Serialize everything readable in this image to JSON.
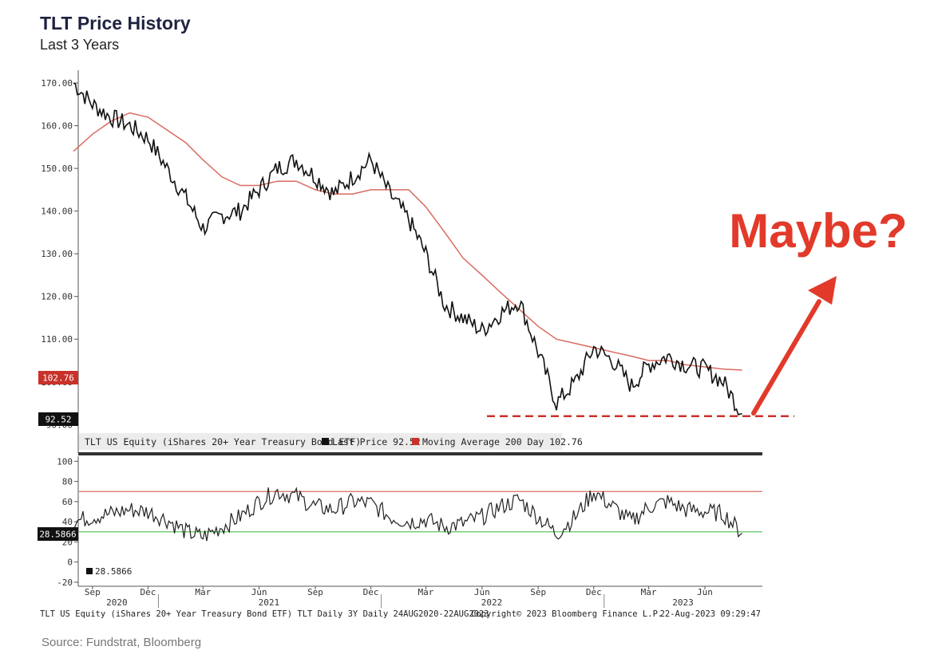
{
  "title": "TLT Price History",
  "subtitle": "Last 3 Years",
  "source": "Source: Fundstrat, Bloomberg",
  "annotation": {
    "text": "Maybe?",
    "color": "#e23a2a"
  },
  "colors": {
    "price": "#111111",
    "ma": "#d96b60",
    "rsi": "#222222",
    "rsi_upper": "#d96b60",
    "rsi_lower": "#5bc45b",
    "marker_dash": "#c8322a"
  },
  "chart_data": [
    {
      "type": "line",
      "panel": "price",
      "ylim": [
        88,
        173
      ],
      "yticks": [
        "170.00",
        "160.00",
        "150.00",
        "140.00",
        "130.00",
        "120.00",
        "110.00",
        "100.00",
        "90.00"
      ],
      "ytick_values": [
        170,
        160,
        150,
        140,
        130,
        120,
        110,
        100,
        90
      ],
      "x_domain": [
        "2020-08-24",
        "2023-08-22"
      ],
      "x": [
        "2020-08",
        "2020-09",
        "2020-10",
        "2020-11",
        "2020-12",
        "2021-01",
        "2021-02",
        "2021-03",
        "2021-04",
        "2021-05",
        "2021-06",
        "2021-07",
        "2021-08",
        "2021-09",
        "2021-10",
        "2021-11",
        "2021-12",
        "2022-01",
        "2022-02",
        "2022-03",
        "2022-04",
        "2022-05",
        "2022-06",
        "2022-07",
        "2022-08",
        "2022-09",
        "2022-10",
        "2022-11",
        "2022-12",
        "2023-01",
        "2023-02",
        "2023-03",
        "2023-04",
        "2023-05",
        "2023-06",
        "2023-07",
        "2023-08"
      ],
      "series": [
        {
          "name": "Last Price",
          "values": [
            170,
            165,
            162,
            160,
            157,
            150,
            143,
            136,
            139,
            140,
            145,
            150,
            152,
            148,
            144,
            148,
            152,
            144,
            138,
            130,
            118,
            115,
            112,
            116,
            119,
            107,
            95,
            100,
            108,
            105,
            99,
            104,
            106,
            104,
            103,
            100,
            92.52
          ]
        },
        {
          "name": "Moving Average 200 Day",
          "values": [
            154,
            158,
            161,
            163,
            162,
            159,
            156,
            152,
            148,
            146,
            146,
            147,
            147,
            145,
            144,
            144,
            145,
            145,
            145,
            141,
            135,
            129,
            125,
            121,
            117,
            113,
            110,
            109,
            108,
            107,
            106,
            105,
            105,
            104,
            103.5,
            103,
            102.76
          ]
        }
      ],
      "last_price_label": "92.52",
      "ma_label": "102.76",
      "support_level": 92.52,
      "legend": {
        "security": "TLT US Equity (iShares 20+ Year Treasury Bond ETF)",
        "last_price": "Last Price 92.52",
        "ma": "Moving Average 200 Day 102.76"
      }
    },
    {
      "type": "line",
      "panel": "rsi",
      "ylim": [
        -24,
        105
      ],
      "yticks": [
        "100",
        "80",
        "60",
        "40",
        "20",
        "0",
        "-20"
      ],
      "ytick_values": [
        100,
        80,
        60,
        40,
        20,
        0,
        -20
      ],
      "x_domain": [
        "2020-08-24",
        "2023-08-22"
      ],
      "upper_band": 70,
      "lower_band": 30,
      "x": [
        "2020-08",
        "2020-09",
        "2020-10",
        "2020-11",
        "2020-12",
        "2021-01",
        "2021-02",
        "2021-03",
        "2021-04",
        "2021-05",
        "2021-06",
        "2021-07",
        "2021-08",
        "2021-09",
        "2021-10",
        "2021-11",
        "2021-12",
        "2022-01",
        "2022-02",
        "2022-03",
        "2022-04",
        "2022-05",
        "2022-06",
        "2022-07",
        "2022-08",
        "2022-09",
        "2022-10",
        "2022-11",
        "2022-12",
        "2023-01",
        "2023-02",
        "2023-03",
        "2023-04",
        "2023-05",
        "2023-06",
        "2023-07",
        "2023-08"
      ],
      "series": [
        {
          "name": "RSI",
          "values": [
            40,
            45,
            48,
            52,
            50,
            42,
            30,
            25,
            35,
            45,
            60,
            70,
            65,
            55,
            52,
            60,
            58,
            45,
            40,
            42,
            35,
            38,
            45,
            55,
            62,
            45,
            28,
            45,
            70,
            55,
            40,
            55,
            60,
            52,
            50,
            48,
            28.5866
          ]
        }
      ],
      "last_label": "28.5866",
      "legend": "28.5866"
    }
  ],
  "x_axis": {
    "months": [
      "Sep",
      "Dec",
      "Mar",
      "Jun",
      "Sep",
      "Dec",
      "Mar",
      "Jun",
      "Sep",
      "Dec",
      "Mar",
      "Jun"
    ],
    "month_dates": [
      "2020-09-15",
      "2020-12-15",
      "2021-03-15",
      "2021-06-15",
      "2021-09-15",
      "2021-12-15",
      "2022-03-15",
      "2022-06-15",
      "2022-09-15",
      "2022-12-15",
      "2023-03-15",
      "2023-06-15"
    ],
    "years": [
      "2020",
      "2021",
      "2022",
      "2023"
    ],
    "year_dates": [
      "2020-10-25",
      "2021-07-01",
      "2022-07-01",
      "2023-05-10"
    ],
    "year_boundaries": [
      "2021-01-01",
      "2022-01-01",
      "2023-01-01"
    ]
  },
  "footer": {
    "left": "TLT US Equity (iShares 20+ Year Treasury Bond ETF) TLT Daily 3Y  Daily 24AUG2020-22AUG2023",
    "center": "Copyright© 2023 Bloomberg Finance L.P.",
    "right": "22-Aug-2023 09:29:47"
  }
}
